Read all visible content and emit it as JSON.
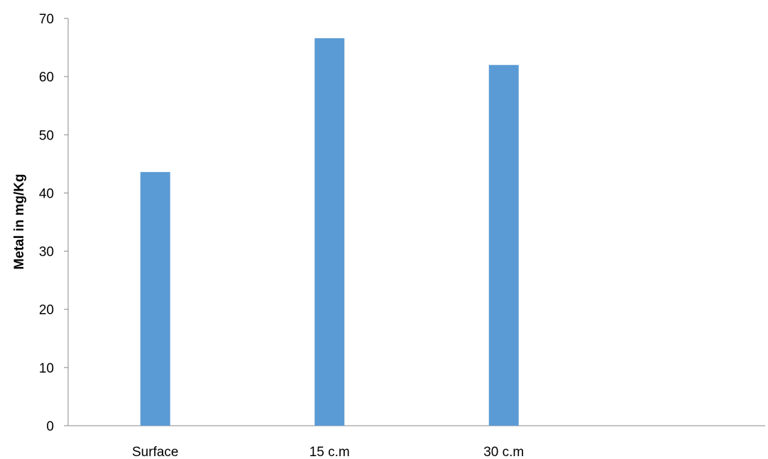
{
  "chart_data": {
    "type": "bar",
    "categories": [
      "Surface",
      "15 c.m",
      "30 c.m",
      ""
    ],
    "values": [
      43.6,
      66.6,
      62.0,
      null
    ],
    "title": "",
    "xlabel": "",
    "ylabel": "Metal in mg/Kg",
    "ylim": [
      0,
      70
    ],
    "yticks": [
      0,
      10,
      20,
      30,
      40,
      50,
      60,
      70
    ],
    "grid": false,
    "legend": "none",
    "bar_color": "#5B9BD5",
    "axis_color": "#888888"
  }
}
